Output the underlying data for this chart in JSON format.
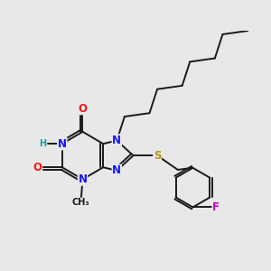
{
  "bg_color": "#e8e8e8",
  "atom_colors": {
    "C": "#1a1a1a",
    "N": "#1414ff",
    "O": "#ff1414",
    "S": "#b8960a",
    "F": "#cc00cc",
    "H": "#14a0a0"
  },
  "bond_color": "#1a1a1a",
  "bond_width": 1.4,
  "font_size": 8.5,
  "fig_size": [
    3.0,
    3.0
  ],
  "dpi": 100
}
